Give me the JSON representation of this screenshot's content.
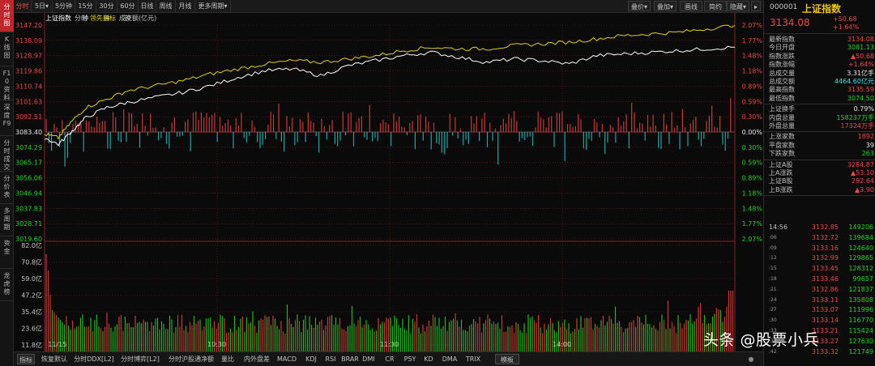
{
  "left_tabs": [
    {
      "label": "分时图",
      "active": true
    },
    {
      "label": "K线图",
      "active": false
    },
    {
      "label": "F10资料",
      "active": false
    },
    {
      "label": "深度F9",
      "active": false
    },
    {
      "label": "分时成交",
      "active": false
    },
    {
      "label": "分价表",
      "active": false
    },
    {
      "label": "多周期",
      "active": false
    },
    {
      "label": "资金",
      "active": false
    },
    {
      "label": "龙虎榜",
      "active": false
    }
  ],
  "toolbar": {
    "periods": [
      "分时",
      "5日▾",
      "5分钟",
      "15分钟",
      "30分钟",
      "60分钟",
      "日线",
      "周线",
      "月线",
      "更多周期▾"
    ],
    "right_buttons": [
      "叠价▾",
      "叠加▾",
      "画线",
      "简约",
      "隐藏▾"
    ]
  },
  "legend": {
    "index_name": "上证指数",
    "mode": "分时",
    "leading": "领先指标",
    "volume": "成交额(亿元)"
  },
  "axis": {
    "price_ticks": [
      "3147.20",
      "3138.09",
      "3128.97",
      "3119.86",
      "3110.74",
      "3101.63",
      "3092.51",
      "3083.40",
      "3074.29",
      "3065.17",
      "3056.06",
      "3046.94",
      "3037.83",
      "3028.71",
      "3019.60"
    ],
    "pct_ticks": [
      "2.07%",
      "1.77%",
      "1.48%",
      "1.18%",
      "0.89%",
      "0.59%",
      "0.30%",
      "0.00%",
      "0.30%",
      "0.59%",
      "0.89%",
      "1.18%",
      "1.48%",
      "1.77%",
      "2.07%"
    ],
    "volume_ticks": [
      "82.0亿",
      "70.8亿",
      "59.0亿",
      "47.2亿",
      "35.4亿",
      "23.6亿",
      "11.8亿"
    ],
    "time_labels": [
      "11/15",
      "10:30",
      "11:30",
      "14:00"
    ]
  },
  "chart_data": {
    "type": "line",
    "x_range": [
      "09:30",
      "15:00"
    ],
    "ylim": [
      3019.6,
      3147.2
    ],
    "prev_close": 3083.4,
    "series": [
      {
        "name": "上证指数",
        "color": "#ffffff",
        "x": [
          0,
          0.02,
          0.04,
          0.06,
          0.09,
          0.12,
          0.16,
          0.2,
          0.24,
          0.28,
          0.32,
          0.36,
          0.4,
          0.44,
          0.48,
          0.52,
          0.56,
          0.6,
          0.64,
          0.68,
          0.72,
          0.76,
          0.8,
          0.84,
          0.88,
          0.92,
          0.96,
          1.0
        ],
        "values": [
          3080,
          3076,
          3084,
          3092,
          3098,
          3101,
          3104,
          3107,
          3111,
          3116,
          3120,
          3121,
          3117,
          3123,
          3126,
          3129,
          3131,
          3128,
          3125,
          3127,
          3126,
          3124,
          3129,
          3130,
          3131,
          3132,
          3133,
          3134
        ]
      },
      {
        "name": "领先指标",
        "color": "#e6d200",
        "x": [
          0,
          0.02,
          0.04,
          0.06,
          0.09,
          0.12,
          0.16,
          0.2,
          0.24,
          0.28,
          0.32,
          0.36,
          0.4,
          0.44,
          0.48,
          0.52,
          0.56,
          0.6,
          0.64,
          0.68,
          0.72,
          0.76,
          0.8,
          0.84,
          0.88,
          0.92,
          0.96,
          1.0
        ],
        "values": [
          3082,
          3080,
          3090,
          3098,
          3103,
          3108,
          3111,
          3114,
          3118,
          3121,
          3124,
          3126,
          3125,
          3127,
          3129,
          3132,
          3134,
          3133,
          3133,
          3135,
          3136,
          3137,
          3139,
          3141,
          3142,
          3143,
          3145,
          3147
        ]
      }
    ]
  },
  "right_panel": {
    "code": "000001",
    "name": "上证指数",
    "price": "3134.08",
    "change": "+50.68",
    "change_pct": "+1.64%",
    "stats": [
      {
        "label": "最新指数",
        "value": "3134.08",
        "color": "#f04848"
      },
      {
        "label": "今日开盘",
        "value": "3081.13",
        "color": "#26d626"
      },
      {
        "label": "指数涨跌",
        "value": "▲50.68",
        "color": "#f04848"
      },
      {
        "label": "指数涨幅",
        "value": "+1.64%",
        "color": "#f04848"
      },
      {
        "label": "总成交量",
        "value": "3.31亿手",
        "color": "#e8e8e8"
      },
      {
        "label": "总成交额",
        "value": "4464.60亿元",
        "color": "#3ee6e6"
      },
      {
        "label": "最高指数",
        "value": "3135.59",
        "color": "#f04848"
      },
      {
        "label": "最低指数",
        "value": "3074.50",
        "color": "#26d626"
      }
    ],
    "stats2": [
      {
        "label": "上证换手",
        "value": "0.79%",
        "color": "#e8e8e8"
      },
      {
        "label": "内盘总量",
        "value": "158237万手",
        "color": "#26d626"
      },
      {
        "label": "外盘总量",
        "value": "17324万手",
        "color": "#f04848"
      }
    ],
    "stats3": [
      {
        "label": "上涨家数",
        "value": "1892",
        "color": "#f04848"
      },
      {
        "label": "平盘家数",
        "value": "39",
        "color": "#e8e8e8"
      },
      {
        "label": "下跌家数",
        "value": "263",
        "color": "#26d626"
      }
    ],
    "stats4": [
      {
        "label": "上证A股",
        "value": "3284.87",
        "color": "#f04848"
      },
      {
        "label": "上A涨跌",
        "value": "▲53.10",
        "color": "#f04848"
      },
      {
        "label": "上证B股",
        "value": "292.64",
        "color": "#f04848"
      },
      {
        "label": "上B涨跌",
        "value": "▲3.90",
        "color": "#f04848"
      }
    ],
    "ticks": [
      {
        "time": "14:56",
        "price": "3132.85",
        "vol": "149206"
      },
      {
        "time": ":06",
        "price": "3132.72",
        "vol": "139684"
      },
      {
        "time": ":09",
        "price": "3133.16",
        "vol": "124640"
      },
      {
        "time": ":12",
        "price": "3132.99",
        "vol": "129865"
      },
      {
        "time": ":15",
        "price": "3133.45",
        "vol": "128312"
      },
      {
        "time": ":18",
        "price": "3133.46",
        "vol": "99657"
      },
      {
        "time": ":21",
        "price": "3132.86",
        "vol": "121837"
      },
      {
        "time": ":24",
        "price": "3133.11",
        "vol": "135808"
      },
      {
        "time": ":27",
        "price": "3133.07",
        "vol": "111996"
      },
      {
        "time": ":30",
        "price": "3133.14",
        "vol": "116770"
      },
      {
        "time": ":33",
        "price": "3133.21",
        "vol": "115424"
      },
      {
        "time": ":36",
        "price": "3133.27",
        "vol": "127630"
      },
      {
        "time": ":42",
        "price": "3133.32",
        "vol": "121749"
      }
    ]
  },
  "bottom_bar": [
    "指标",
    "恢复默认",
    "分时DDX[L2]",
    "分时博弈[L2]",
    "分时沪股通净额",
    "量比",
    "内外盘差",
    "MACD",
    "KDJ",
    "RSI",
    "BRAR",
    "DMI",
    "CR",
    "PSY",
    "KD",
    "DMA",
    "TRIX",
    "模板"
  ],
  "watermark": "头条 @股票小兵",
  "colors": {
    "up": "#f04848",
    "down": "#26d626",
    "diff_down": "#1aa8a8",
    "grid": "#7a1e1e",
    "price_line": "#ffffff",
    "lead_line": "#e6d200"
  }
}
